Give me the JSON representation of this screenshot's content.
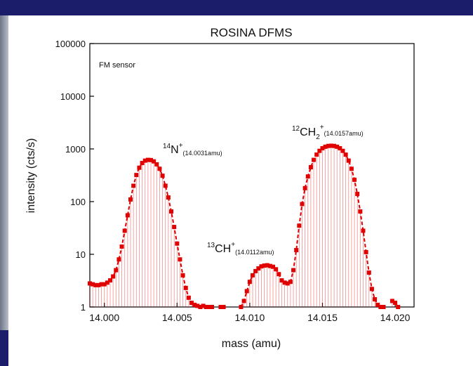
{
  "chart_data": {
    "type": "line",
    "title": "ROSINA DFMS",
    "x_label": "mass (amu)",
    "y_label": "intensity (cts/s)",
    "note": "FM sensor",
    "log_y": true,
    "xlim": [
      13.999,
      14.0213
    ],
    "ylim": [
      1,
      100000
    ],
    "xticks": [
      {
        "value": 14,
        "label": "14.000"
      },
      {
        "value": 14.005,
        "label": "14.005"
      },
      {
        "value": 14.01,
        "label": "14.010"
      },
      {
        "value": 14.015,
        "label": "14.015"
      },
      {
        "value": 14.02,
        "label": "14.020"
      }
    ],
    "yticks": [
      1,
      10,
      100,
      1000,
      10000,
      100000
    ],
    "annotations": [
      {
        "isotope": "14",
        "ion": "N",
        "charge": "+",
        "mass": "(14.0031amu)"
      },
      {
        "isotope": "13",
        "ion": "CH",
        "charge": "+",
        "mass": "(14.0112amu)"
      },
      {
        "isotope": "12",
        "ion": "CH",
        "subscript": "2",
        "charge": "+",
        "mass": "(14.0157amu)"
      }
    ],
    "series": [
      {
        "color": "#e00000",
        "x": [
          13.999,
          13.9992,
          13.9994,
          13.9996,
          13.9998,
          14.0,
          14.0002,
          14.0004,
          14.0006,
          14.0008,
          14.001,
          14.0012,
          14.0014,
          14.0016,
          14.0018,
          14.002,
          14.0022,
          14.0024,
          14.0026,
          14.0028,
          14.003,
          14.0032,
          14.0034,
          14.0036,
          14.0038,
          14.004,
          14.0042,
          14.0044,
          14.0046,
          14.0048,
          14.005,
          14.0052,
          14.0054,
          14.0056,
          14.0058,
          14.006,
          14.0062,
          14.0064,
          14.0066,
          14.0068,
          14.007,
          14.0072,
          14.0074,
          14.0076,
          14.0078,
          14.008,
          14.0082,
          14.0084,
          14.0086,
          14.0088,
          14.009,
          14.0092,
          14.0094,
          14.0096,
          14.0098,
          14.01,
          14.0102,
          14.0104,
          14.0106,
          14.0108,
          14.011,
          14.0112,
          14.0114,
          14.0116,
          14.0118,
          14.012,
          14.0122,
          14.0124,
          14.0126,
          14.0128,
          14.013,
          14.0132,
          14.0134,
          14.0136,
          14.0138,
          14.014,
          14.0142,
          14.0144,
          14.0146,
          14.0148,
          14.015,
          14.0152,
          14.0154,
          14.0156,
          14.0158,
          14.016,
          14.0162,
          14.0164,
          14.0166,
          14.0168,
          14.017,
          14.0172,
          14.0174,
          14.0176,
          14.0178,
          14.018,
          14.0182,
          14.0184,
          14.0186,
          14.0188,
          14.019,
          14.0192,
          14.0194,
          14.0196,
          14.0198,
          14.02,
          14.0202
        ],
        "values": [
          2.8,
          2.7,
          2.6,
          2.6,
          2.7,
          2.7,
          2.9,
          3.2,
          3.8,
          5,
          8,
          14,
          28,
          55,
          110,
          200,
          320,
          440,
          540,
          600,
          620,
          615,
          580,
          510,
          420,
          310,
          200,
          120,
          65,
          33,
          16,
          8,
          4,
          2.3,
          1.5,
          1.2,
          1.1,
          1.05,
          1,
          1.05,
          1,
          1,
          1,
          null,
          null,
          1,
          1,
          null,
          null,
          null,
          null,
          null,
          1,
          1.3,
          2,
          3,
          4,
          4.8,
          5.4,
          5.9,
          6.1,
          6.2,
          6,
          5.8,
          5.2,
          4.2,
          3.2,
          2.9,
          2.8,
          3,
          5,
          12,
          35,
          90,
          180,
          300,
          450,
          620,
          780,
          920,
          1030,
          1100,
          1140,
          1150,
          1140,
          1100,
          1030,
          920,
          780,
          600,
          420,
          260,
          140,
          65,
          28,
          11,
          4.5,
          2.2,
          1.4,
          1.1,
          1,
          1,
          null,
          null,
          1.3,
          1.2,
          1
        ]
      }
    ]
  }
}
